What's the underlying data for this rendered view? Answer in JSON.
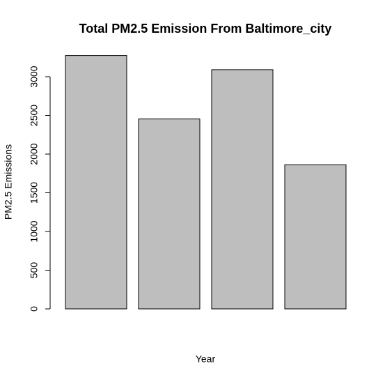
{
  "chart_data": {
    "type": "bar",
    "title": "Total PM2.5 Emission From Baltimore_city",
    "x_label": "Year",
    "y_label": "PM2.5 Emissions",
    "categories": [
      null,
      null,
      null,
      null
    ],
    "values": [
      3274,
      2454,
      3091,
      1862
    ],
    "color": "#bebebe",
    "ylim": [
      0,
      3274
    ],
    "yticks": [
      0,
      500,
      1000,
      1500,
      2000,
      2500,
      3000
    ],
    "grid": false
  }
}
